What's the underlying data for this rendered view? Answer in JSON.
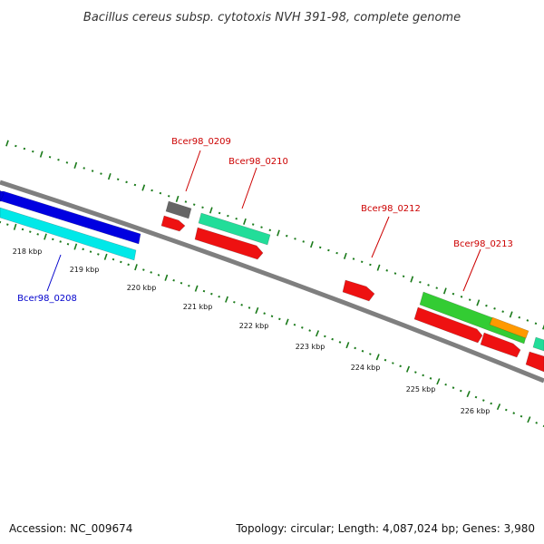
{
  "title": "Bacillus cereus subsp. cytotoxis NVH 391-98, complete genome",
  "footer": {
    "accession": "Accession: NC_009674",
    "summary": "Topology: circular; Length: 4,087,024 bp; Genes: 3,980"
  },
  "scale_labels": [
    "218 kbp",
    "219 kbp",
    "220 kbp",
    "221 kbp",
    "222 kbp",
    "223 kbp",
    "224 kbp",
    "225 kbp",
    "226 kbp"
  ],
  "gene_labels": {
    "g0208": "Bcer98_0208",
    "g0209": "Bcer98_0209",
    "g0210": "Bcer98_0210",
    "g0212": "Bcer98_0212",
    "g0213": "Bcer98_0213"
  },
  "colors": {
    "backbone": "#7f7f7f",
    "tick": "#1a7a1a",
    "dot": "#1a7a1a",
    "label_blue": "#0000cc",
    "label_red": "#cc0000",
    "cds_red": "#ee1111",
    "cds_blue": "#0000e0",
    "cds_cyan": "#00e8e8",
    "cds_green": "#33cc33",
    "cds_teal": "#22dd99",
    "cds_gray": "#666666",
    "cds_orange": "#ff9900"
  }
}
